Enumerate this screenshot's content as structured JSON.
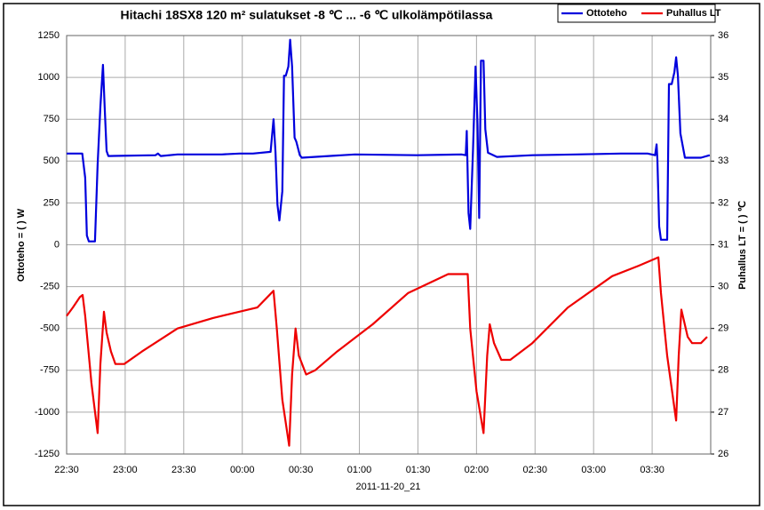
{
  "chart_data": {
    "type": "line",
    "title": "Hitachi 18SX8 120 m² sulatukset -8 ℃ ... -6 ℃ ulkolämpötilassa",
    "x_label": "2011-11-20_21",
    "y_label": "Ottoteho = ( ) W",
    "y2_label": "Puhallus LT = ( ) ℃",
    "xlim": [
      0,
      330
    ],
    "xticks": [
      {
        "value": 0,
        "label": "22:30"
      },
      {
        "value": 30,
        "label": "23:00"
      },
      {
        "value": 60,
        "label": "23:30"
      },
      {
        "value": 90,
        "label": "00:00"
      },
      {
        "value": 120,
        "label": "00:30"
      },
      {
        "value": 150,
        "label": "01:00"
      },
      {
        "value": 180,
        "label": "01:30"
      },
      {
        "value": 210,
        "label": "02:00"
      },
      {
        "value": 240,
        "label": "02:30"
      },
      {
        "value": 270,
        "label": "03:00"
      },
      {
        "value": 300,
        "label": "03:30"
      }
    ],
    "ylim": [
      -1250,
      1250
    ],
    "yticks": [
      -1250,
      -1000,
      -750,
      -500,
      -250,
      0,
      250,
      500,
      750,
      1000,
      1250
    ],
    "y2lim": [
      26,
      36
    ],
    "y2ticks": [
      26,
      27,
      28,
      29,
      30,
      31,
      32,
      33,
      34,
      35,
      36
    ],
    "grid": true,
    "legend": "top-right",
    "series": [
      {
        "name": "Ottoteho",
        "color": "#0000dd",
        "x": [
          0,
          8,
          9.5,
          10.4,
          11.4,
          14.5,
          15.9,
          17.3,
          18.6,
          19.5,
          20.5,
          21.4,
          45.5,
          46.8,
          48.2,
          56.8,
          79.5,
          88.6,
          95.5,
          104.5,
          106,
          107,
          108,
          109,
          110.5,
          111.4,
          112.3,
          113.6,
          114.5,
          115.5,
          116.8,
          117.7,
          119.5,
          120.5,
          147.7,
          179.5,
          202.3,
          204.5,
          205,
          205.9,
          206.8,
          208.2,
          209.5,
          210.5,
          211.4,
          212.3,
          213.6,
          214.5,
          215.9,
          220.5,
          238.6,
          261.4,
          284,
          297.7,
          301.5,
          302.3,
          302.7,
          303.6,
          304.5,
          307.7,
          308.6,
          310,
          311.4,
          312.3,
          313.2,
          314.5,
          316.8,
          325,
          329.5
        ],
        "values": [
          545,
          545,
          400,
          55,
          20,
          20,
          480,
          825,
          1075,
          825,
          560,
          530,
          535,
          545,
          530,
          540,
          540,
          545,
          545,
          555,
          750,
          555,
          240,
          145,
          320,
          1010,
          1010,
          1065,
          1225,
          1065,
          640,
          615,
          535,
          520,
          540,
          535,
          540,
          535,
          680,
          190,
          95,
          560,
          1065,
          720,
          160,
          1100,
          1100,
          690,
          550,
          525,
          535,
          540,
          545,
          545,
          535,
          600,
          510,
          110,
          30,
          30,
          960,
          960,
          1030,
          1120,
          1010,
          665,
          520,
          520,
          535
        ]
      },
      {
        "name": "Puhallus LT",
        "color": "#ee0000",
        "axis": "y2",
        "x": [
          0,
          3.2,
          6.8,
          8.2,
          9.5,
          12.7,
          15.9,
          17.3,
          19.1,
          20.5,
          22.7,
          25,
          29.5,
          38.6,
          56.8,
          75,
          97.7,
          106,
          107.7,
          110.5,
          114,
          115.5,
          117.3,
          119,
          122.7,
          127.3,
          138.6,
          156.8,
          175,
          195.5,
          205.5,
          206.8,
          210,
          213.6,
          215.5,
          216.8,
          219,
          222.7,
          227.3,
          238.6,
          256.8,
          279.5,
          293.2,
          303.2,
          304.5,
          307.7,
          312.3,
          313.6,
          315,
          318.2,
          320.5,
          325,
          328.2
        ],
        "values": [
          29.3,
          29.5,
          29.75,
          29.8,
          29.3,
          27.7,
          26.5,
          28.15,
          29.4,
          28.9,
          28.45,
          28.15,
          28.15,
          28.45,
          29.0,
          29.25,
          29.5,
          29.9,
          29.0,
          27.3,
          26.2,
          27.9,
          29.0,
          28.35,
          27.9,
          28.0,
          28.45,
          29.1,
          29.85,
          30.3,
          30.3,
          29.0,
          27.5,
          26.5,
          28.35,
          29.1,
          28.65,
          28.25,
          28.25,
          28.65,
          29.5,
          30.25,
          30.5,
          30.7,
          29.85,
          28.35,
          26.8,
          28.35,
          29.45,
          28.8,
          28.65,
          28.65,
          28.8
        ]
      }
    ]
  }
}
